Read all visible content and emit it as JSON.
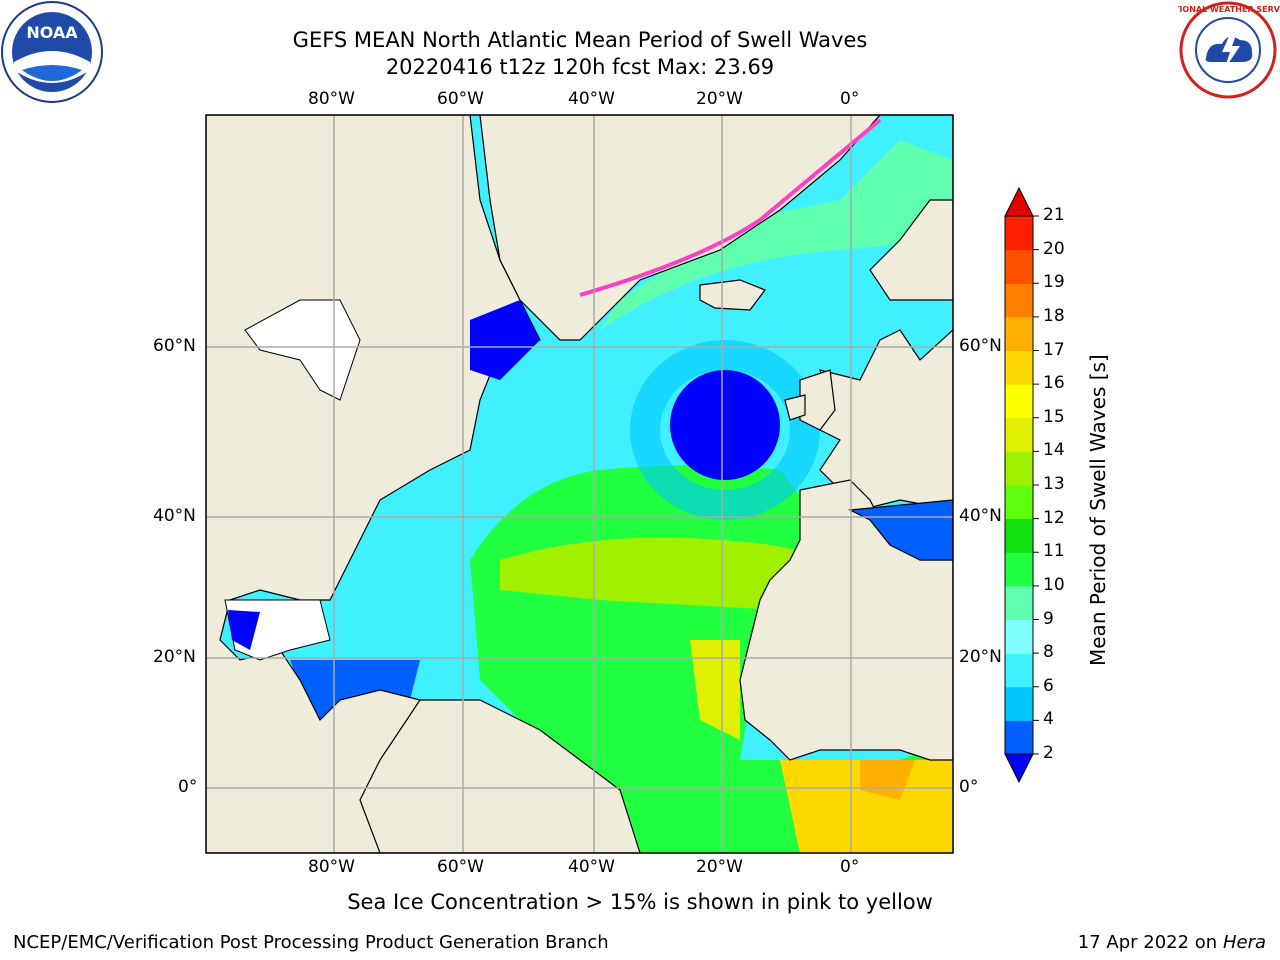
{
  "title_line1": "GEFS MEAN North Atlantic Mean Period of Swell Waves",
  "title_line2": "20220416 t12z 120h fcst   Max: 23.69",
  "logos": {
    "left": "noaa-logo",
    "right": "national-weather-service-logo",
    "left_text": "NOAA",
    "right_text": "NATIONAL WEATHER SERVICE"
  },
  "map": {
    "lon_labels": [
      "80°W",
      "60°W",
      "40°W",
      "20°W",
      "0°"
    ],
    "lat_labels": [
      "60°N",
      "40°N",
      "20°N",
      "0°"
    ],
    "land_color": "#efecdc",
    "grid_color": "#aaaaaa"
  },
  "colorbar": {
    "title": "Mean Period of Swell Waves [s]",
    "ticks": [
      "2",
      "4",
      "6",
      "8",
      "9",
      "10",
      "11",
      "12",
      "13",
      "14",
      "15",
      "16",
      "17",
      "18",
      "19",
      "20",
      "21"
    ],
    "colors": [
      "#0000ff",
      "#0060ff",
      "#00c8ff",
      "#40f0ff",
      "#80ffff",
      "#60ffb0",
      "#20ff40",
      "#10e010",
      "#60ff10",
      "#a0f000",
      "#e0f000",
      "#ffff00",
      "#ffd800",
      "#ffb000",
      "#ff8000",
      "#ff5000",
      "#ff2000"
    ],
    "over_color": "#e00000",
    "under_color": "#0000ff"
  },
  "note": "Sea Ice Concentration > 15% is shown in pink to yellow",
  "footer_left": "NCEP/EMC/Verification Post Processing Product Generation Branch",
  "footer_right_prefix": "17 Apr 2022 on ",
  "footer_right_host": "Hera"
}
